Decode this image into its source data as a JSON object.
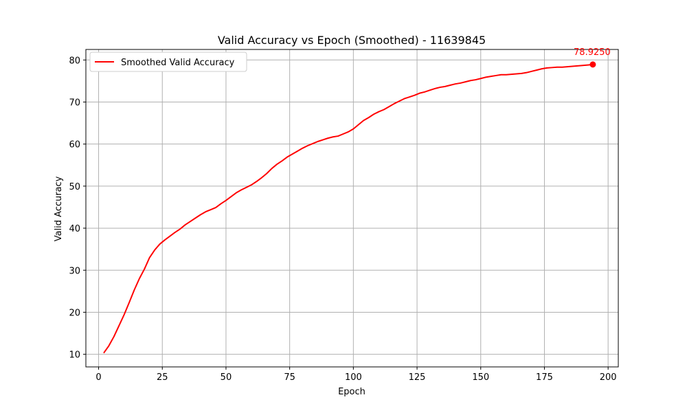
{
  "chart_data": {
    "type": "line",
    "title": "Valid Accuracy vs Epoch (Smoothed) - 11639845",
    "xlabel": "Epoch",
    "ylabel": "Valid Accuracy",
    "xlim": [
      -5,
      204
    ],
    "ylim": [
      7,
      82.5
    ],
    "xticks": [
      0,
      25,
      50,
      75,
      100,
      125,
      150,
      175,
      200
    ],
    "yticks": [
      10,
      20,
      30,
      40,
      50,
      60,
      70,
      80
    ],
    "grid": true,
    "legend": {
      "location": "upper-left",
      "entries": [
        "Smoothed Valid Accuracy"
      ]
    },
    "series": [
      {
        "name": "Smoothed Valid Accuracy",
        "color": "#ff0000",
        "x": [
          2,
          4,
          6,
          8,
          10,
          12,
          14,
          16,
          18,
          20,
          22,
          24,
          26,
          28,
          30,
          32,
          34,
          36,
          38,
          40,
          42,
          44,
          46,
          48,
          50,
          52,
          54,
          56,
          58,
          60,
          62,
          64,
          66,
          68,
          70,
          72,
          74,
          76,
          78,
          80,
          82,
          84,
          86,
          88,
          90,
          92,
          94,
          96,
          98,
          100,
          102,
          104,
          106,
          108,
          110,
          112,
          114,
          116,
          118,
          120,
          122,
          124,
          126,
          128,
          130,
          132,
          134,
          136,
          138,
          140,
          142,
          144,
          146,
          148,
          150,
          152,
          154,
          156,
          158,
          160,
          162,
          164,
          166,
          168,
          170,
          172,
          174,
          176,
          178,
          180,
          182,
          184,
          186,
          188,
          190,
          192,
          194
        ],
        "y": [
          10.3,
          12.0,
          14.2,
          16.8,
          19.4,
          22.3,
          25.3,
          28.0,
          30.3,
          33.0,
          34.8,
          36.2,
          37.2,
          38.1,
          39.0,
          39.8,
          40.8,
          41.6,
          42.4,
          43.2,
          43.9,
          44.4,
          44.9,
          45.8,
          46.6,
          47.5,
          48.4,
          49.1,
          49.7,
          50.3,
          51.1,
          52.0,
          53.0,
          54.2,
          55.2,
          56.0,
          56.9,
          57.6,
          58.3,
          59.0,
          59.6,
          60.1,
          60.6,
          61.0,
          61.4,
          61.7,
          61.9,
          62.4,
          62.9,
          63.6,
          64.6,
          65.6,
          66.3,
          67.1,
          67.7,
          68.2,
          68.9,
          69.6,
          70.2,
          70.8,
          71.2,
          71.6,
          72.1,
          72.4,
          72.8,
          73.2,
          73.5,
          73.7,
          74.0,
          74.3,
          74.5,
          74.8,
          75.1,
          75.3,
          75.6,
          75.9,
          76.1,
          76.3,
          76.5,
          76.5,
          76.6,
          76.7,
          76.8,
          77.0,
          77.3,
          77.6,
          77.9,
          78.1,
          78.2,
          78.3,
          78.3,
          78.4,
          78.5,
          78.6,
          78.7,
          78.8,
          78.925
        ]
      }
    ],
    "annotations": [
      {
        "text": "78.9250",
        "x": 194,
        "y": 78.925,
        "color": "#ff0000"
      }
    ]
  }
}
